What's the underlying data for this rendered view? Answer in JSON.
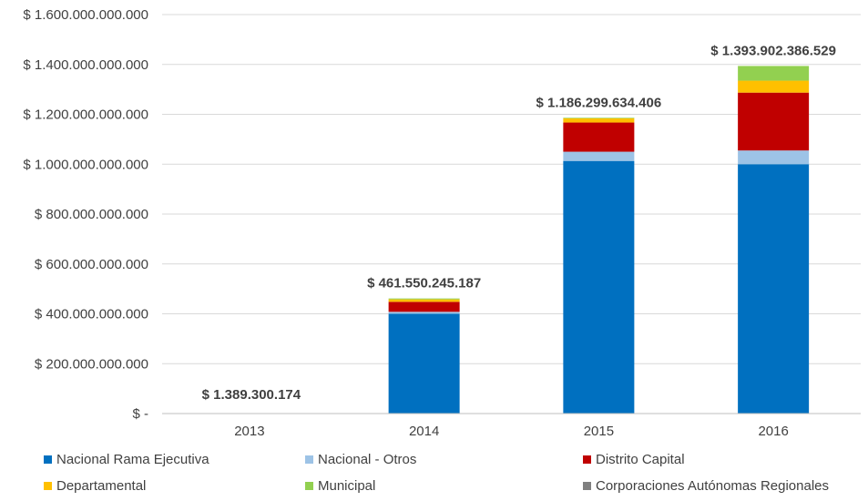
{
  "chart_data": {
    "type": "bar",
    "stacked": true,
    "categories": [
      "2013",
      "2014",
      "2015",
      "2016"
    ],
    "ylim": [
      0,
      1600000000000
    ],
    "yticks": [
      {
        "value": 0,
        "label": "$ -"
      },
      {
        "value": 200000000000,
        "label": "$ 200.000.000.000"
      },
      {
        "value": 400000000000,
        "label": "$ 400.000.000.000"
      },
      {
        "value": 600000000000,
        "label": "$ 600.000.000.000"
      },
      {
        "value": 800000000000,
        "label": "$ 800.000.000.000"
      },
      {
        "value": 1000000000000,
        "label": "$ 1.000.000.000.000"
      },
      {
        "value": 1200000000000,
        "label": "$ 1.200.000.000.000"
      },
      {
        "value": 1400000000000,
        "label": "$ 1.400.000.000.000"
      },
      {
        "value": 1600000000000,
        "label": "$ 1.600.000.000.000"
      }
    ],
    "grid": true,
    "legend_position": "bottom",
    "series": [
      {
        "name": "Nacional Rama Ejecutiva",
        "color": "#0070c0",
        "values": [
          0,
          400000000000,
          1013000000000,
          1000000000000
        ]
      },
      {
        "name": "Nacional - Otros",
        "color": "#9dc3e6",
        "values": [
          0,
          8000000000,
          37000000000,
          55000000000
        ]
      },
      {
        "name": "Distrito Capital",
        "color": "#c00000",
        "values": [
          1389300174,
          40000000000,
          117000000000,
          232000000000
        ]
      },
      {
        "name": "Departamental",
        "color": "#ffc000",
        "values": [
          0,
          10000000000,
          17000000000,
          48000000000
        ]
      },
      {
        "name": "Municipal",
        "color": "#92d050",
        "values": [
          0,
          3550245187,
          2299634406,
          58902386529
        ]
      },
      {
        "name": "Corporaciones Autónomas Regionales",
        "color": "#808080",
        "values": [
          0,
          0,
          0,
          0
        ]
      }
    ],
    "totals": [
      {
        "value": 1389300174,
        "label": "$ 1.389.300.174"
      },
      {
        "value": 461550245187,
        "label": "$ 461.550.245.187"
      },
      {
        "value": 1186299634406,
        "label": "$ 1.186.299.634.406"
      },
      {
        "value": 1393902386529,
        "label": "$ 1.393.902.386.529"
      }
    ]
  }
}
